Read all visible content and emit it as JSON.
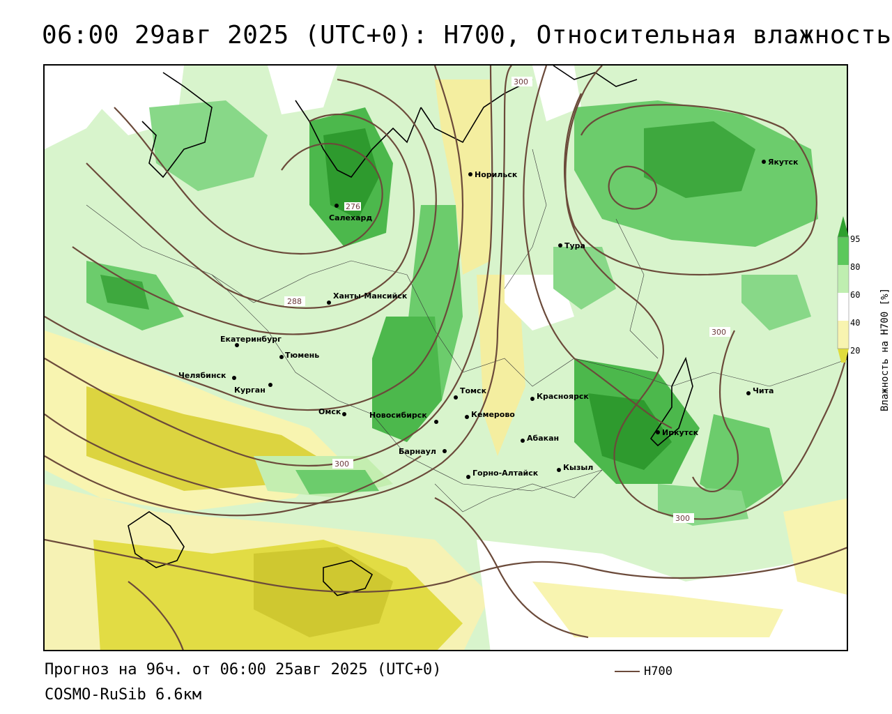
{
  "title": "06:00 29авг 2025 (UTC+0): H700, Относительная влажность",
  "footer": {
    "forecast": "Прогноз на 96ч. от 06:00 25авг 2025 (UTC+0)",
    "model": "COSMO-RuSib 6.6км"
  },
  "legend": {
    "contour_label": "H700",
    "contour_color": "#6b4a3a"
  },
  "colorbar": {
    "title": "Влажность на H700 [%]",
    "ticks": [
      "95",
      "80",
      "60",
      "40",
      "20"
    ],
    "colors": {
      "dark_green": "#2ea02e",
      "green": "#5cc85c",
      "light_green": "#bfeeb0",
      "white": "#ffffff",
      "light_yellow": "#f8f4b0",
      "yellow": "#e0dc3c",
      "olive": "#c8c030"
    }
  },
  "cities": [
    {
      "name": "Салехард"
    },
    {
      "name": "Норильск"
    },
    {
      "name": "Якутск"
    },
    {
      "name": "Тура"
    },
    {
      "name": "Ханты-Мансийск"
    },
    {
      "name": "Екатеринбург"
    },
    {
      "name": "Тюмень"
    },
    {
      "name": "Челябинск"
    },
    {
      "name": "Курган"
    },
    {
      "name": "Омск"
    },
    {
      "name": "Новосибирск"
    },
    {
      "name": "Томск"
    },
    {
      "name": "Кемерово"
    },
    {
      "name": "Красноярск"
    },
    {
      "name": "Абакан"
    },
    {
      "name": "Барнаул"
    },
    {
      "name": "Горно-Алтайск"
    },
    {
      "name": "Кызыл"
    },
    {
      "name": "Иркутск"
    },
    {
      "name": "Чита"
    }
  ],
  "contour_labels": [
    "300",
    "276",
    "288",
    "300",
    "300",
    "300"
  ]
}
